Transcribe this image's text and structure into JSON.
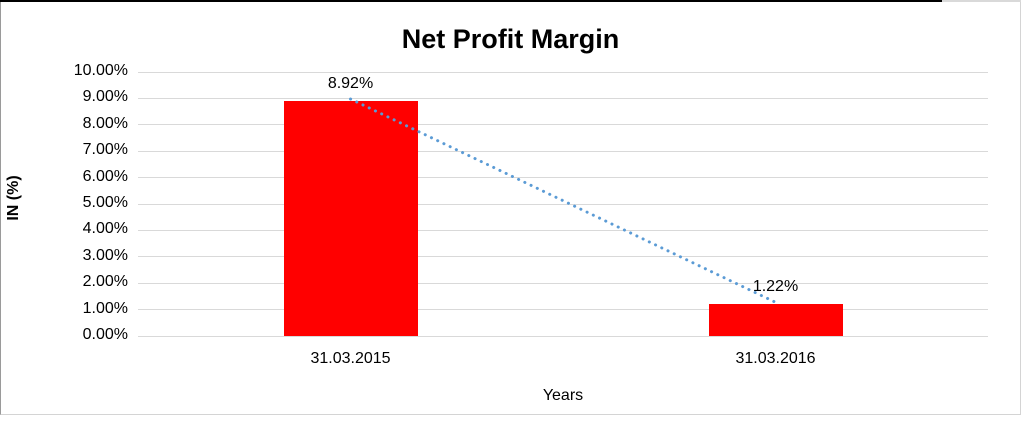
{
  "chart_data": {
    "type": "bar",
    "title": "Net Profit Margin",
    "categories": [
      "31.03.2015",
      "31.03.2016"
    ],
    "series": [
      {
        "name": "Net Profit Margin",
        "type": "bar",
        "values": [
          8.92,
          1.22
        ],
        "color": "#ff0000"
      },
      {
        "name": "trendline",
        "type": "dotted-line",
        "values": [
          8.92,
          1.22
        ],
        "color": "#5b9bd5"
      }
    ],
    "data_labels": [
      "8.92%",
      "1.22%"
    ],
    "xlabel": "Years",
    "ylabel": "IN (%)",
    "ylim": [
      0,
      10
    ],
    "ytick_labels": [
      "0.00%",
      "1.00%",
      "2.00%",
      "3.00%",
      "4.00%",
      "5.00%",
      "6.00%",
      "7.00%",
      "8.00%",
      "9.00%",
      "10.00%"
    ],
    "grid": true,
    "gridline_color": "#d9d9d9",
    "legend_position": "none"
  },
  "colors": {
    "bar": "#ff0000",
    "trendline": "#5b9bd5",
    "gridline": "#d9d9d9",
    "text": "#000000",
    "frame_top": "#000000",
    "frame_left": "#9a9a9a",
    "frame_light": "#d4d4d4"
  }
}
